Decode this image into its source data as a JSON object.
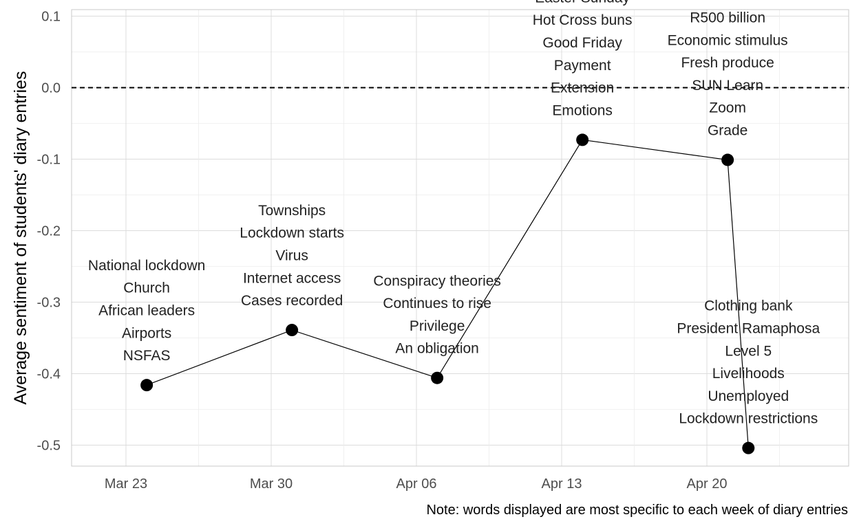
{
  "chart_data": {
    "type": "line",
    "ylabel": "Average sentiment of students' diary entries",
    "xlabel": "",
    "caption": "Note: words displayed are most specific to each week of diary entries",
    "ylim": [
      -0.5,
      0.1
    ],
    "y_ticks": [
      "0.1",
      "0.0",
      "-0.1",
      "-0.2",
      "-0.3",
      "-0.4",
      "-0.5"
    ],
    "x_ticks": [
      "Mar 23",
      "Mar 30",
      "Apr 06",
      "Apr 13",
      "Apr 20"
    ],
    "grid": true,
    "reference_line": {
      "y": 0,
      "style": "dashed"
    },
    "points": [
      {
        "x": "Mar 24",
        "y": -0.416,
        "words": [
          "National lockdown",
          "Church",
          "African leaders",
          "Airports",
          "NSFAS"
        ]
      },
      {
        "x": "Mar 31",
        "y": -0.339,
        "words": [
          "Townships",
          "Lockdown starts",
          "Virus",
          "Internet access",
          "Cases recorded"
        ]
      },
      {
        "x": "Apr 07",
        "y": -0.406,
        "words": [
          "Conspiracy theories",
          "Continues to rise",
          "Privilege",
          "An obligation"
        ]
      },
      {
        "x": "Apr 14",
        "y": -0.073,
        "words": [
          "Easter Sunday",
          "Hot Cross buns",
          "Good Friday",
          "Payment",
          "Extension",
          "Emotions"
        ]
      },
      {
        "x": "Apr 21",
        "y": -0.101,
        "words": [
          "R500 billion",
          "Economic stimulus",
          "Fresh produce",
          "SUN Learn",
          "Zoom",
          "Grade"
        ]
      },
      {
        "x": "Apr 22",
        "y": -0.504,
        "words": [
          "Clothing bank",
          "President Ramaphosa",
          "Level 5",
          "Livelihoods",
          "Unemployed",
          "Lockdown restrictions"
        ]
      }
    ]
  }
}
